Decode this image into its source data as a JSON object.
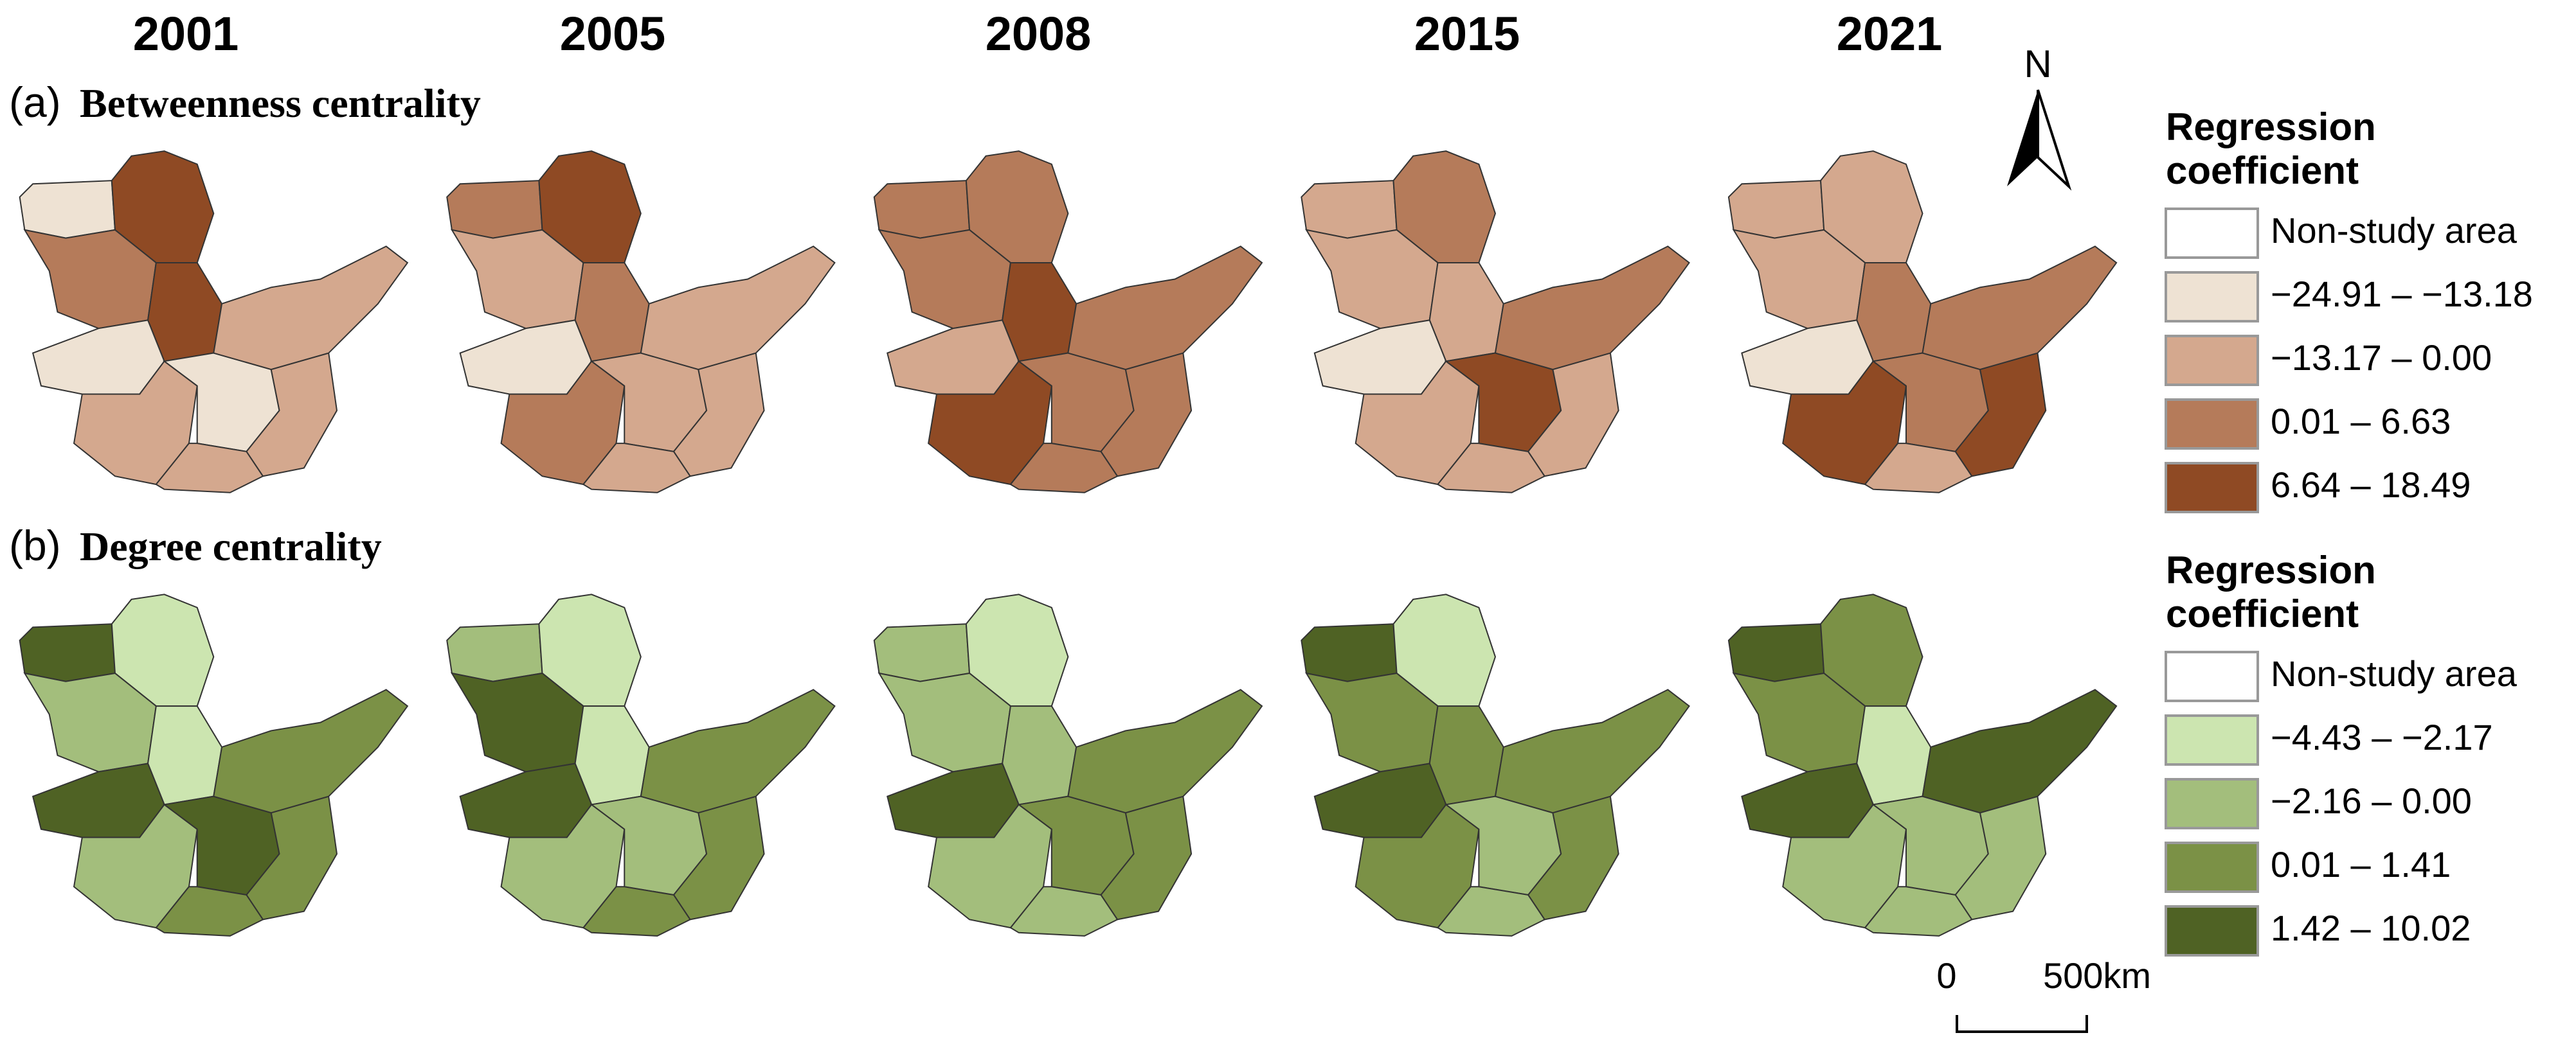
{
  "years": [
    "2001",
    "2005",
    "2008",
    "2015",
    "2021"
  ],
  "panels": [
    {
      "label": "(a)",
      "title": "Betweenness centrality",
      "legend": {
        "title": [
          "Regression",
          "coefficient"
        ],
        "items": [
          {
            "label": "Non-study area",
            "color": "#ffffff"
          },
          {
            "label": "−24.91 – −13.18",
            "color": "#eee2d3"
          },
          {
            "label": "−13.17 – 0.00",
            "color": "#d4a88e"
          },
          {
            "label": "0.01 – 6.63",
            "color": "#b57b5a"
          },
          {
            "label": "6.64 – 18.49",
            "color": "#8f4a24"
          }
        ]
      }
    },
    {
      "label": "(b)",
      "title": "Degree centrality",
      "legend": {
        "title": [
          "Regression",
          "coefficient"
        ],
        "items": [
          {
            "label": "Non-study area",
            "color": "#ffffff"
          },
          {
            "label": "−4.43 – −2.17",
            "color": "#cce5b0"
          },
          {
            "label": "−2.16 – 0.00",
            "color": "#a3be7c"
          },
          {
            "label": "0.01 – 1.41",
            "color": "#7b9146"
          },
          {
            "label": "1.42 – 10.02",
            "color": "#4f6224"
          }
        ]
      }
    }
  ],
  "north": "N",
  "scale_bar": {
    "labels": [
      "0",
      "500km"
    ]
  }
}
